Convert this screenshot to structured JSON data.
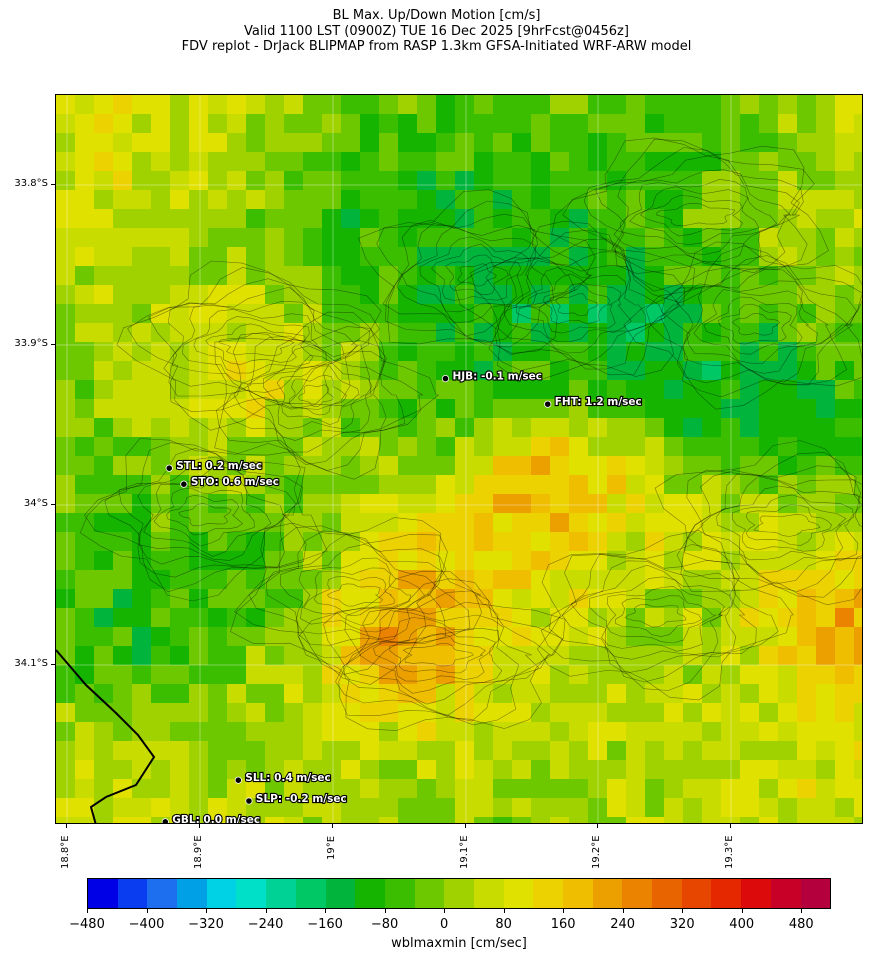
{
  "title": {
    "line1": "BL Max. Up/Down Motion [cm/s]",
    "line2": "Valid 1100 LST (0900Z) TUE 16 Dec 2025 [9hrFcst@0456z]",
    "line3": "FDV replot - DrJack BLIPMAP from RASP 1.3km GFSA-Initiated WRF-ARW model"
  },
  "lat_labels": [
    "33.8°S",
    "33.9°S",
    "34°S",
    "34.1°S"
  ],
  "lon_labels": [
    "18.8°E",
    "18.9°E",
    "19°E",
    "19.1°E",
    "19.2°E",
    "19.3°E"
  ],
  "stations": [
    {
      "id": "HJB",
      "label": "HJB: -0.1 m/sec",
      "lat": -33.921,
      "lon": 19.085
    },
    {
      "id": "FHT",
      "label": "FHT: 1.2 m/sec",
      "lat": -33.937,
      "lon": 19.162
    },
    {
      "id": "STL",
      "label": "STL: 0.2 m/sec",
      "lat": -33.977,
      "lon": 18.877
    },
    {
      "id": "STO",
      "label": "STO: 0.6 m/sec",
      "lat": -33.987,
      "lon": 18.888
    },
    {
      "id": "SLL",
      "label": "SLL: 0.4 m/sec",
      "lat": -34.172,
      "lon": 18.929
    },
    {
      "id": "SLP",
      "label": "SLP: -0.2 m/sec",
      "lat": -34.185,
      "lon": 18.937
    },
    {
      "id": "GBL",
      "label": "GBL: 0.0 m/sec",
      "lat": -34.198,
      "lon": 18.874
    }
  ],
  "colorbar": {
    "title": "wblmaxmin [cm/sec]",
    "ticks": [
      "−480",
      "−400",
      "−320",
      "−240",
      "−160",
      "−80",
      "0",
      "80",
      "160",
      "240",
      "320",
      "400",
      "480"
    ],
    "tick_values": [
      -480,
      -400,
      -320,
      -240,
      -160,
      -80,
      0,
      80,
      160,
      240,
      320,
      400,
      480
    ],
    "range": [
      -480,
      520
    ],
    "colors": [
      "#0000e6",
      "#0a3cf0",
      "#1e6ef0",
      "#00a0e6",
      "#00d2e6",
      "#00e0c8",
      "#00d296",
      "#00c864",
      "#00b43c",
      "#14b400",
      "#3cbe00",
      "#6ec800",
      "#a0d200",
      "#c8dc00",
      "#e1e100",
      "#ebd200",
      "#f0be00",
      "#eba000",
      "#eb8200",
      "#e86400",
      "#e64600",
      "#e62800",
      "#dc0a0a",
      "#c80028",
      "#b4003c"
    ]
  },
  "chart_data": {
    "type": "heatmap",
    "title": "BL Max. Up/Down Motion [cm/s]",
    "variable": "wblmaxmin",
    "units": "cm/sec",
    "color_range": [
      -480,
      520
    ],
    "lon_range": [
      18.8,
      19.41
    ],
    "lat_range": [
      -34.22,
      -33.675
    ],
    "station_values_m_per_sec": {
      "HJB": -0.1,
      "FHT": 1.2,
      "STL": 0.2,
      "STO": 0.6,
      "SLL": 0.4,
      "SLP": -0.2,
      "GBL": 0.0
    }
  }
}
